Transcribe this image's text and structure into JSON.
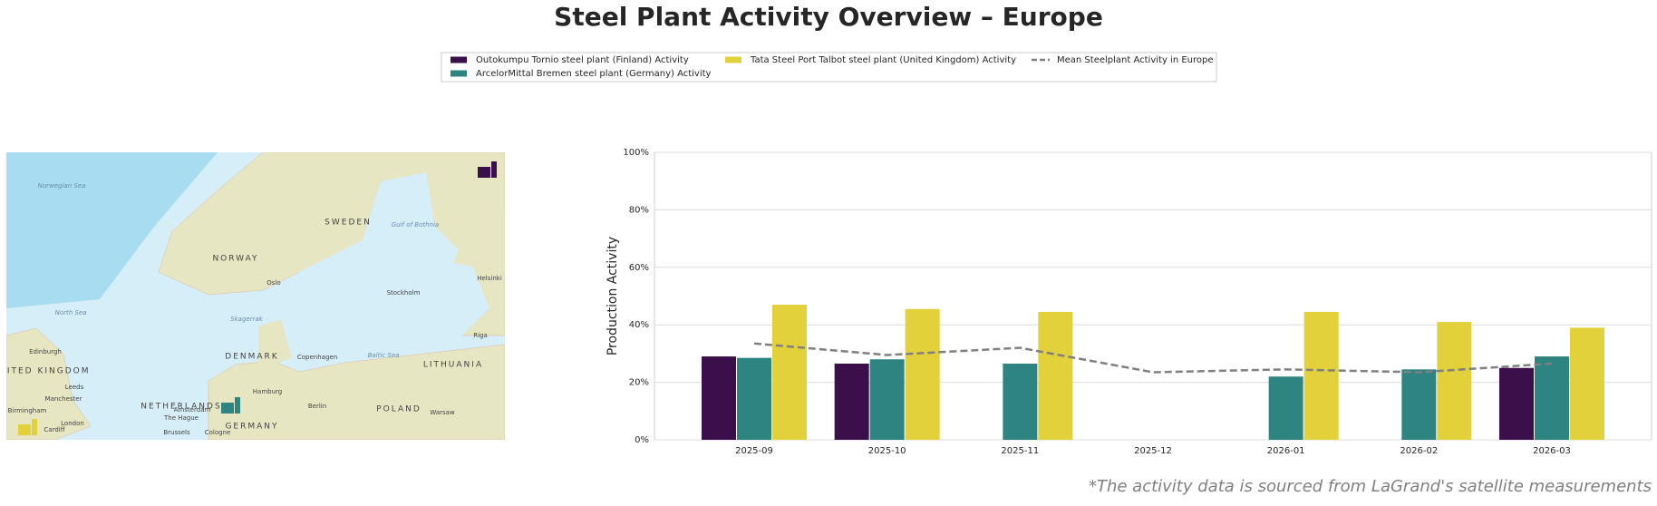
{
  "chart_data": {
    "type": "bar",
    "title": "Steel Plant Activity Overview – Europe",
    "ylabel": "Production Activity",
    "footnote": "*The activity data is sourced from LaGrand's satellite measurements",
    "categories": [
      "2025-09",
      "2025-10",
      "2025-11",
      "2025-12",
      "2026-01",
      "2026-02",
      "2026-03"
    ],
    "series": [
      {
        "name": "Outokumpu Tornio steel plant (Finland) Activity",
        "color": "#3b0f4a",
        "values": [
          29,
          26.5,
          null,
          null,
          null,
          null,
          25
        ]
      },
      {
        "name": "ArcelorMittal Bremen steel plant (Germany) Activity",
        "color": "#2e8480",
        "values": [
          28.5,
          28,
          26.5,
          null,
          22,
          24.5,
          29
        ]
      },
      {
        "name": "Tata Steel Port Talbot steel plant (United Kingdom) Activity",
        "color": "#e2d13a",
        "values": [
          47,
          45.5,
          44.5,
          null,
          44.5,
          41,
          39
        ]
      },
      {
        "name": "Mean Steelplant Activity in Europe",
        "color": "#808080",
        "type": "line",
        "style": "dashed",
        "values": [
          33.5,
          29.5,
          32,
          23.5,
          24.5,
          23.5,
          26.5
        ]
      }
    ],
    "ylim": [
      0,
      100
    ],
    "yticks": [
      {
        "value": 0,
        "label": "0%"
      },
      {
        "value": 20,
        "label": "20%"
      },
      {
        "value": 40,
        "label": "40%"
      },
      {
        "value": 60,
        "label": "60%"
      },
      {
        "value": 80,
        "label": "80%"
      },
      {
        "value": 100,
        "label": "100%"
      }
    ],
    "grid": true
  },
  "map": {
    "labels": [
      "Norwegian Sea",
      "SWEDEN",
      "NORWAY",
      "Oslo",
      "Stockholm",
      "Gulf of Bothnia",
      "Helsinki",
      "North Sea",
      "Skagerrak",
      "DENMARK",
      "Copenhagen",
      "Baltic Sea",
      "Riga",
      "Edinburgh",
      "UNITED KINGDOM",
      "Leeds",
      "Manchester",
      "Birmingham",
      "London",
      "Cardiff",
      "NETHERLANDS",
      "Amsterdam",
      "The Hague",
      "Hamburg",
      "Berlin",
      "POLAND",
      "Warsaw",
      "GERMANY",
      "Brussels",
      "Cologne",
      "LITHUANIA"
    ]
  }
}
